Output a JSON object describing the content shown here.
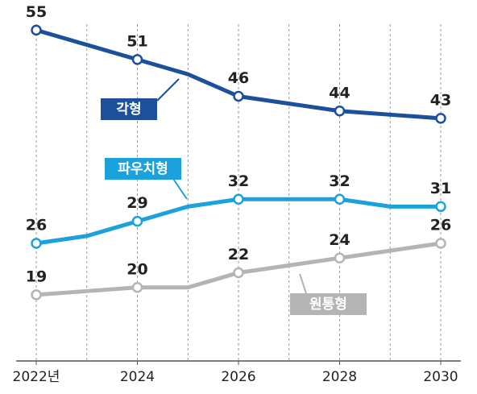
{
  "chart_data": {
    "type": "line",
    "x": [
      2022,
      2023,
      2024,
      2025,
      2026,
      2027,
      2028,
      2029,
      2030
    ],
    "series": [
      {
        "name": "각형",
        "color": "#1c4f9c",
        "values": [
          55,
          53,
          51,
          49,
          46,
          45,
          44,
          43.5,
          43
        ]
      },
      {
        "name": "파우치형",
        "color": "#1ba1dc",
        "values": [
          26,
          27,
          29,
          31,
          32,
          32,
          32,
          31,
          31
        ]
      },
      {
        "name": "원통형",
        "color": "#b4b4b4",
        "values": [
          19,
          19.5,
          20,
          20,
          22,
          23,
          24,
          25,
          26
        ]
      }
    ],
    "xlim": [
      2022,
      2030
    ],
    "xticks": [
      {
        "value": 2022,
        "label": "2022년"
      },
      2024,
      2026,
      2028,
      2030
    ],
    "ylim": [
      10,
      58
    ]
  }
}
